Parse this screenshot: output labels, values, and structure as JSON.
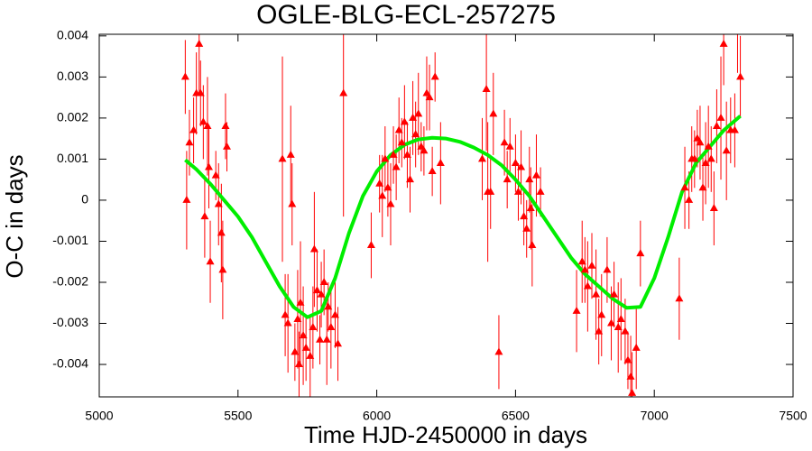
{
  "chart_data": {
    "type": "scatter",
    "title": "OGLE-BLG-ECL-257275",
    "x_label": "Time HJD-2450000 in days",
    "y_label": "O-C in days",
    "xlim": [
      5000,
      7500
    ],
    "xticks": [
      5000,
      5500,
      6000,
      6500,
      7000,
      7500
    ],
    "ylim": [
      -0.00479,
      0.00404
    ],
    "yticks": [
      0.004,
      0.003,
      0.002,
      0.001,
      0,
      -0.001,
      -0.002,
      -0.003,
      -0.004
    ],
    "points": {
      "color": "#ff0000",
      "x": [
        5310,
        5315,
        5325,
        5340,
        5350,
        5360,
        5365,
        5375,
        5380,
        5390,
        5395,
        5400,
        5420,
        5430,
        5440,
        5445,
        5455,
        5460,
        5660,
        5670,
        5680,
        5690,
        5695,
        5705,
        5715,
        5720,
        5725,
        5735,
        5745,
        5760,
        5770,
        5775,
        5785,
        5795,
        5800,
        5810,
        5820,
        5825,
        5835,
        5850,
        5860,
        5880,
        5980,
        6010,
        6020,
        6030,
        6040,
        6050,
        6060,
        6070,
        6080,
        6090,
        6100,
        6110,
        6120,
        6130,
        6140,
        6150,
        6160,
        6170,
        6180,
        6190,
        6200,
        6210,
        6230,
        6380,
        6395,
        6400,
        6410,
        6420,
        6440,
        6460,
        6470,
        6480,
        6500,
        6510,
        6520,
        6530,
        6540,
        6550,
        6555,
        6560,
        6575,
        6590,
        6720,
        6740,
        6750,
        6760,
        6775,
        6790,
        6800,
        6810,
        6830,
        6845,
        6855,
        6870,
        6880,
        6895,
        6905,
        6915,
        6920,
        6935,
        6950,
        7090,
        7110,
        7125,
        7135,
        7145,
        7155,
        7165,
        7175,
        7185,
        7195,
        7205,
        7215,
        7225,
        7240,
        7250,
        7260,
        7275,
        7290,
        7300,
        7310
      ],
      "values": [
        0.003,
        0,
        0.0014,
        0.0017,
        0.0026,
        0.0038,
        0.0026,
        0.0019,
        -0.0004,
        0.0018,
        0.0008,
        -0.0015,
        0.0006,
        -0.0001,
        -0.0008,
        -0.0017,
        0.0018,
        0.0013,
        0.001,
        -0.0028,
        -0.003,
        0.0011,
        -0.0001,
        -0.0037,
        -0.0029,
        -0.004,
        -0.0025,
        -0.0033,
        -0.0036,
        -0.0038,
        -0.0031,
        -0.0012,
        -0.0022,
        -0.0034,
        -0.0023,
        -0.002,
        -0.0034,
        -0.0026,
        -0.0031,
        -0.0028,
        -0.0035,
        0.0026,
        -0.0011,
        0.0004,
        0.0001,
        0.001,
        0.0003,
        -0.0001,
        0.0011,
        0.0008,
        0.0017,
        0.0014,
        0.0019,
        0.0011,
        0.0005,
        0.002,
        0.0016,
        0.0021,
        0.0013,
        0.0012,
        0.0026,
        0.0025,
        0.0007,
        0.003,
        0.0009,
        0.001,
        0.0027,
        0.0002,
        0.0002,
        0.0021,
        -0.0037,
        0.0014,
        0.0005,
        0.0013,
        0.0009,
        0.0002,
        0.0008,
        -0.0004,
        -0.0007,
        0.0005,
        -0.0002,
        -0.0011,
        0.0006,
        0.0002,
        -0.0027,
        -0.0015,
        -0.0017,
        -0.0021,
        -0.0016,
        -0.0023,
        -0.0032,
        -0.0028,
        -0.0017,
        -0.003,
        -0.0023,
        -0.0031,
        -0.0029,
        -0.0032,
        -0.0039,
        -0.0043,
        -0.0047,
        -0.0036,
        -0.0013,
        -0.0024,
        0.0003,
        0,
        0.001,
        0.001,
        0.0015,
        0.0014,
        0.0003,
        0.0009,
        0.0013,
        0.001,
        -0.0002,
        0.0018,
        0.002,
        0.0038,
        0.0012,
        0.0017,
        0.0017,
        0.0041,
        0.003
      ],
      "errors": [
        0.0009,
        0.0012,
        0.0008,
        0.0008,
        0.001,
        0.0012,
        0.0008,
        0.0009,
        0.001,
        0.0012,
        0.001,
        0.001,
        0.0006,
        0.001,
        0.0012,
        0.0012,
        0.0008,
        0.0006,
        0.0025,
        0.001,
        0.0012,
        0.0012,
        0.001,
        0.0007,
        0.0012,
        0.0008,
        0.0015,
        0.0012,
        0.0008,
        0.001,
        0.001,
        0.0014,
        0.001,
        0.0006,
        0.0008,
        0.0008,
        0.0011,
        0.0006,
        0.001,
        0.0008,
        0.0009,
        0.003,
        0.0008,
        0.0007,
        0.001,
        0.0008,
        0.0007,
        0.001,
        0.0007,
        0.0008,
        0.0008,
        0.0006,
        0.0009,
        0.0008,
        0.0008,
        0.0009,
        0.0008,
        0.001,
        0.0006,
        0.0006,
        0.0009,
        0.0008,
        0.0006,
        0.0006,
        0.001,
        0.001,
        0.0015,
        0.0017,
        0.0009,
        0.001,
        0.0009,
        0.0008,
        0.0007,
        0.0007,
        0.0007,
        0.0007,
        0.0009,
        0.0007,
        0.0007,
        0.0008,
        0.001,
        0.001,
        0.001,
        0.0006,
        0.001,
        0.001,
        0.0008,
        0.0011,
        0.0008,
        0.0011,
        0.0008,
        0.001,
        0.0008,
        0.0009,
        0.0008,
        0.0011,
        0.001,
        0.0008,
        0.0007,
        0.001,
        0.001,
        0.001,
        0.0008,
        0.001,
        0.001,
        0.0007,
        0.0008,
        0.0007,
        0.0007,
        0.0009,
        0.0008,
        0.001,
        0.001,
        0.0008,
        0.0009,
        0.0009,
        0.0015,
        0.001,
        0.0012,
        0.0008,
        0.0009,
        0.001,
        0.001
      ]
    },
    "fit": {
      "color": "#00ee00",
      "x": [
        5310,
        5350,
        5400,
        5450,
        5500,
        5550,
        5600,
        5650,
        5700,
        5750,
        5800,
        5850,
        5900,
        5950,
        6000,
        6050,
        6100,
        6150,
        6200,
        6250,
        6300,
        6350,
        6400,
        6450,
        6500,
        6550,
        6600,
        6650,
        6700,
        6750,
        6800,
        6850,
        6900,
        6950,
        7000,
        7050,
        7100,
        7150,
        7200,
        7250,
        7310
      ],
      "values": [
        0.00098,
        0.00075,
        0.0004,
        0,
        -0.0004,
        -0.0009,
        -0.0015,
        -0.0021,
        -0.0026,
        -0.00285,
        -0.0027,
        -0.0019,
        -0.0008,
        0.0001,
        0.0007,
        0.0011,
        0.00135,
        0.00148,
        0.00152,
        0.0015,
        0.00142,
        0.00128,
        0.0011,
        0.00085,
        0.0005,
        0.0001,
        -0.0004,
        -0.0009,
        -0.0014,
        -0.0018,
        -0.0021,
        -0.0024,
        -0.00262,
        -0.0026,
        -0.0019,
        -0.0009,
        0.0002,
        0.0009,
        0.0013,
        0.0017,
        0.00205
      ]
    }
  }
}
